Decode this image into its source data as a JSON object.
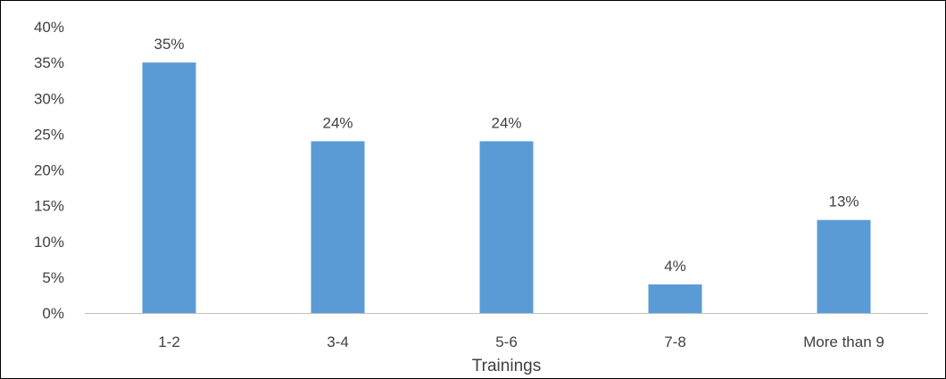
{
  "chart_data": {
    "type": "bar",
    "categories": [
      "1-2",
      "3-4",
      "5-6",
      "7-8",
      "More than 9"
    ],
    "values": [
      35,
      24,
      24,
      4,
      13
    ],
    "value_labels": [
      "35%",
      "24%",
      "24%",
      "4%",
      "13%"
    ],
    "title": "",
    "xlabel": "Trainings",
    "ylabel": "",
    "ylim": [
      0,
      40
    ],
    "yticks": [
      "0%",
      "5%",
      "10%",
      "15%",
      "20%",
      "25%",
      "30%",
      "35%",
      "40%"
    ],
    "grid": false,
    "legend": "none",
    "bar_color": "#5B9BD5",
    "axis_color": "#BFBFBF"
  }
}
